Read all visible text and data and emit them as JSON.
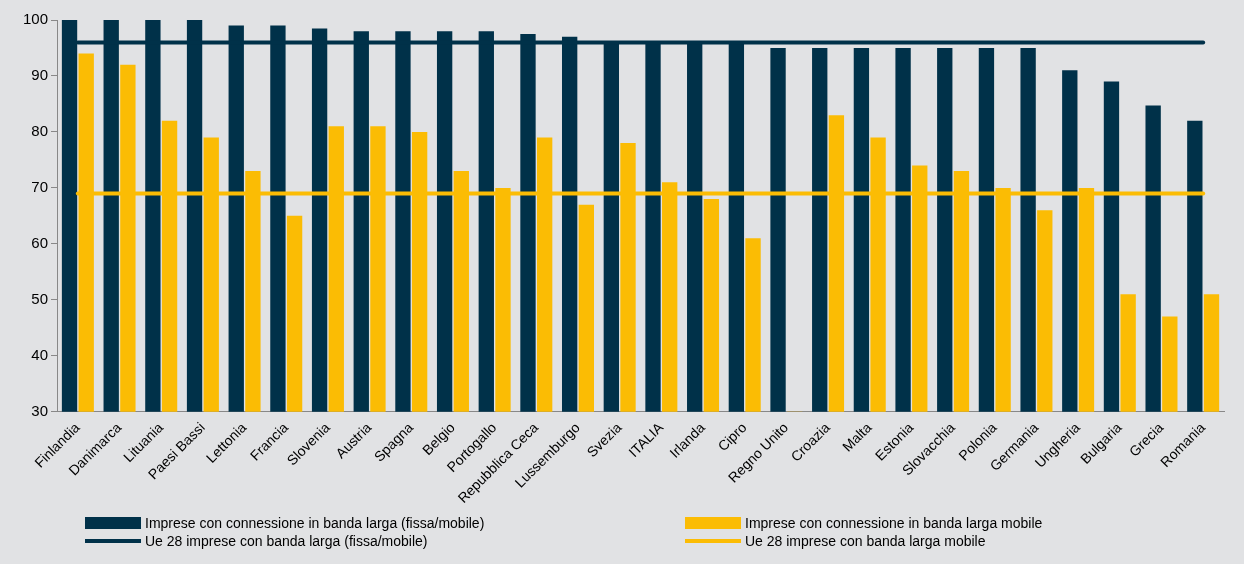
{
  "chart_data": {
    "type": "bar",
    "categories": [
      "Finlandia",
      "Danimarca",
      "Lituania",
      "Paesi Bassi",
      "Lettonia",
      "Francia",
      "Slovenia",
      "Austria",
      "Spagna",
      "Belgio",
      "Portogallo",
      "Repubblica Ceca",
      "Lussemburgo",
      "Svezia",
      "ITALIA",
      "Irlanda",
      "Cipro",
      "Regno Unito",
      "Croazia",
      "Malta",
      "Estonia",
      "Slovacchia",
      "Polonia",
      "Germania",
      "Ungheria",
      "Bulgaria",
      "Grecia",
      "Romania"
    ],
    "series": [
      {
        "name": "Imprese con connessione in banda larga (fissa/mobile)",
        "color": "#003149",
        "values": [
          100,
          100,
          100,
          100,
          99,
          99,
          98.5,
          98,
          98,
          98,
          98,
          97.5,
          97,
          96,
          96,
          96,
          96,
          95,
          95,
          95,
          95,
          95,
          95,
          95,
          91,
          89,
          84.7,
          82
        ]
      },
      {
        "name": "Imprese con connessione in banda larga mobile",
        "color": "#fbbc04",
        "values": [
          94,
          92,
          82,
          79,
          73,
          65,
          81,
          81,
          80,
          73,
          70,
          79,
          67,
          78,
          71,
          68,
          61,
          30,
          83,
          79,
          74,
          73,
          70,
          66,
          70,
          51,
          47,
          51
        ]
      }
    ],
    "ref_lines": [
      {
        "axis": "y",
        "value": 96,
        "label": "Ue 28 imprese con banda larga (fissa/mobile)",
        "color": "#003149"
      },
      {
        "axis": "y",
        "value": 69,
        "label": "Ue 28 imprese con banda larga mobile",
        "color": "#fbbc04"
      }
    ],
    "ylim": [
      30,
      100
    ],
    "yticks": [
      30,
      40,
      50,
      60,
      70,
      80,
      90,
      100
    ],
    "grid": false,
    "legend": "bottom"
  }
}
